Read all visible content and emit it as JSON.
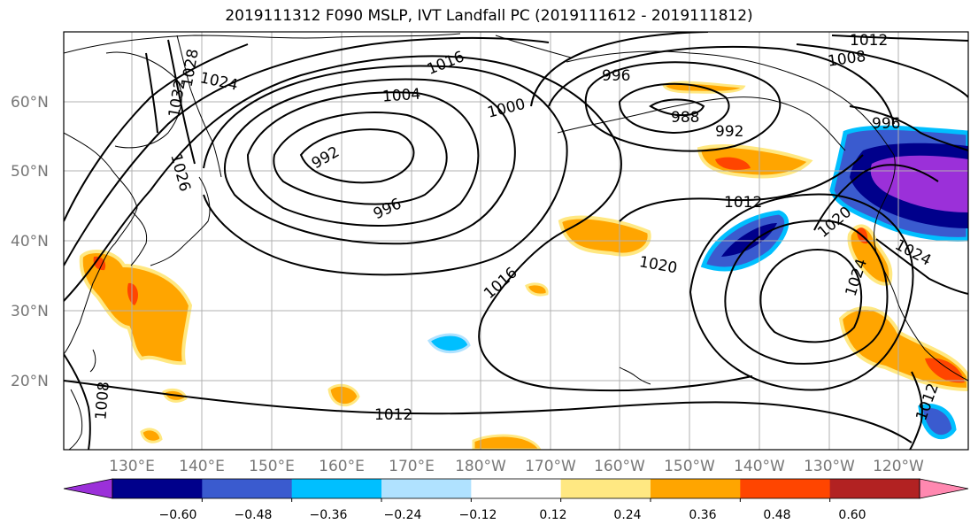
{
  "title": "2019111312 F090 MSLP, IVT Landfall PC (2019111612 - 2019111812)",
  "map": {
    "lat_labels": [
      "60°N",
      "50°N",
      "40°N",
      "30°N",
      "20°N"
    ],
    "lon_labels": [
      "130°E",
      "140°E",
      "150°E",
      "160°E",
      "170°E",
      "180°W",
      "170°W",
      "160°W",
      "150°W",
      "140°W",
      "130°W",
      "120°W"
    ],
    "isobar_labels": [
      "1016",
      "1012",
      "1008",
      "996",
      "1024",
      "1028",
      "1032",
      "1026",
      "1004",
      "1000",
      "988",
      "992",
      "992",
      "996",
      "996",
      "1012",
      "1020",
      "1016",
      "1020",
      "1024",
      "1024",
      "1012",
      "1012",
      "1008"
    ],
    "colors": {
      "coastline": "#000000",
      "grid": "#b0b0b0",
      "positive": [
        "#ffe882",
        "#ffa500",
        "#ff4500",
        "#b22222",
        "#ff88b0"
      ],
      "negative": [
        "#9b30d9",
        "#00008b",
        "#3a5bcf",
        "#00bfff",
        "#b0e2ff"
      ]
    }
  },
  "colorbar": {
    "ticks": [
      "−0.60",
      "−0.48",
      "−0.36",
      "−0.24",
      "−0.12",
      "0.12",
      "0.24",
      "0.36",
      "0.48",
      "0.60"
    ],
    "colors": [
      "#9b30d9",
      "#00008b",
      "#3a5bcf",
      "#00bfff",
      "#b0e2ff",
      "#ffffff",
      "#ffe882",
      "#ffa500",
      "#ff4500",
      "#b22222",
      "#ff88b0"
    ]
  }
}
